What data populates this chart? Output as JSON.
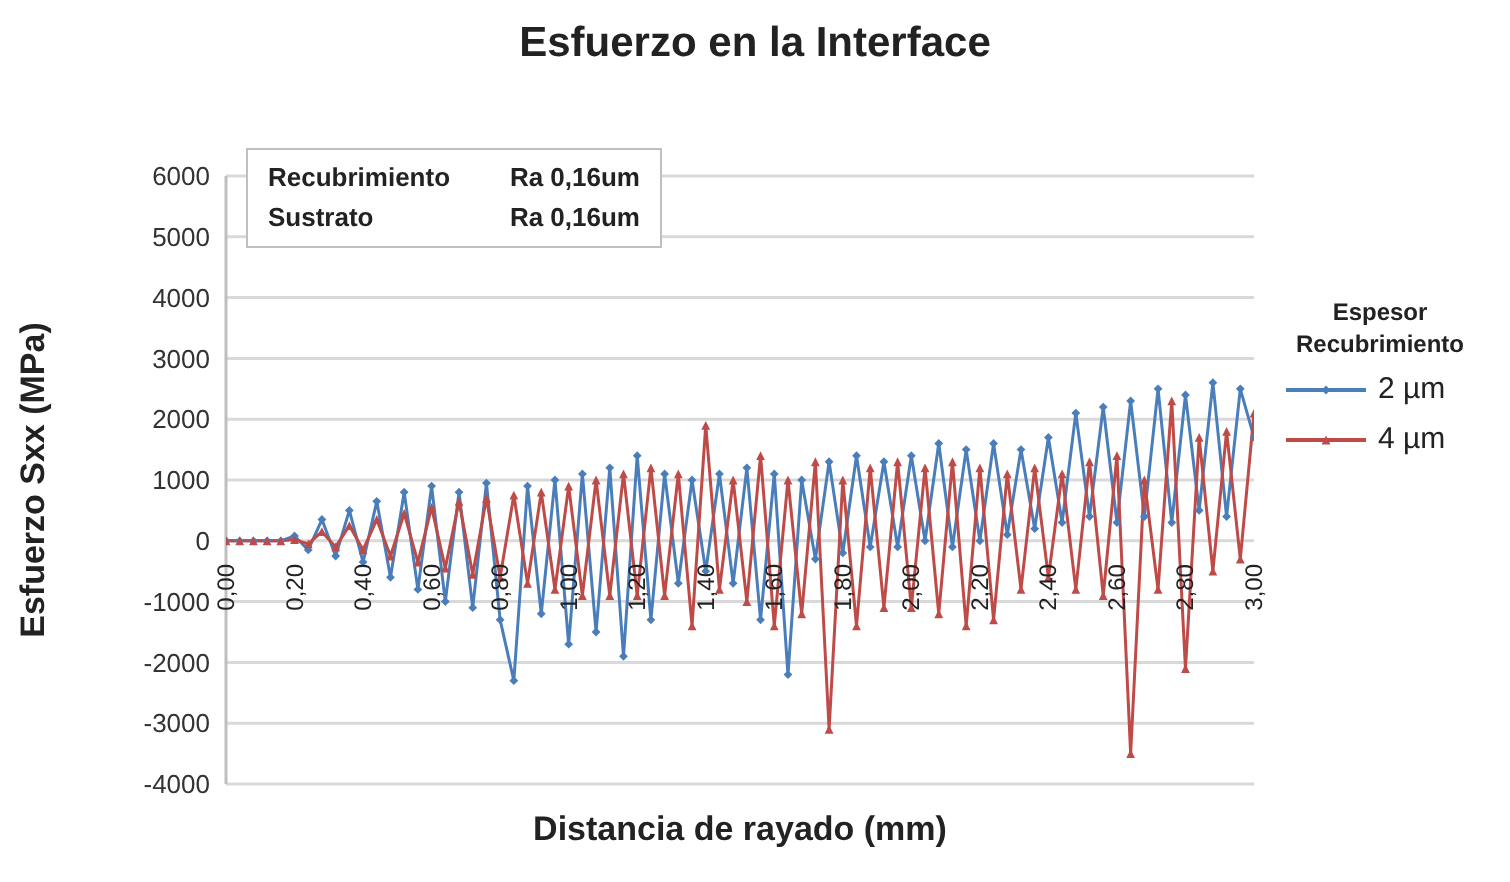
{
  "chart_data": {
    "type": "line",
    "title": "Esfuerzo en la Interface",
    "xlabel": "Distancia de rayado (mm)",
    "ylabel": "Esfuerzo Sxx (MPa)",
    "legend_title": "Espesor Recubrimiento",
    "annotations": [
      "Recubrimiento Ra 0,16um",
      "Sustrato Ra 0,16um"
    ],
    "x": [
      0,
      0.04,
      0.08,
      0.12,
      0.16,
      0.2,
      0.24,
      0.28,
      0.32,
      0.36,
      0.4,
      0.44,
      0.48,
      0.52,
      0.56,
      0.6,
      0.64,
      0.68,
      0.72,
      0.76,
      0.8,
      0.84,
      0.88,
      0.92,
      0.96,
      1,
      1.04,
      1.08,
      1.12,
      1.16,
      1.2,
      1.24,
      1.28,
      1.32,
      1.36,
      1.4,
      1.44,
      1.48,
      1.52,
      1.56,
      1.6,
      1.64,
      1.68,
      1.72,
      1.76,
      1.8,
      1.84,
      1.88,
      1.92,
      1.96,
      2,
      2.04,
      2.08,
      2.12,
      2.16,
      2.2,
      2.24,
      2.28,
      2.32,
      2.36,
      2.4,
      2.44,
      2.48,
      2.52,
      2.56,
      2.6,
      2.64,
      2.68,
      2.72,
      2.76,
      2.8,
      2.84,
      2.88,
      2.92,
      2.96,
      3
    ],
    "series": [
      {
        "name": "2 µm",
        "color": "#4a7ebb",
        "marker": "diamond",
        "values": [
          0,
          0,
          0,
          0,
          0,
          80,
          -150,
          350,
          -250,
          500,
          -350,
          650,
          -600,
          800,
          -800,
          900,
          -1000,
          800,
          -1100,
          950,
          -1300,
          -2300,
          900,
          -1200,
          1000,
          -1700,
          1100,
          -1500,
          1200,
          -1900,
          1400,
          -1300,
          1100,
          -700,
          1000,
          -500,
          1100,
          -700,
          1200,
          -1300,
          1100,
          -2200,
          1000,
          -300,
          1300,
          -200,
          1400,
          -100,
          1300,
          -100,
          1400,
          0,
          1600,
          -100,
          1500,
          0,
          1600,
          100,
          1500,
          200,
          1700,
          300,
          2100,
          400,
          2200,
          300,
          2300,
          400,
          2500,
          300,
          2400,
          500,
          2600,
          400,
          2500,
          1700
        ]
      },
      {
        "name": "4 µm",
        "color": "#be4b48",
        "marker": "triangle",
        "values": [
          0,
          0,
          0,
          0,
          0,
          20,
          -50,
          150,
          -100,
          250,
          -150,
          350,
          -250,
          450,
          -350,
          550,
          -450,
          650,
          -550,
          700,
          -600,
          750,
          -700,
          800,
          -800,
          900,
          -900,
          1000,
          -900,
          1100,
          -900,
          1200,
          -900,
          1100,
          -1400,
          1900,
          -800,
          1000,
          -1000,
          1400,
          -1400,
          1000,
          -1200,
          1300,
          -3100,
          1000,
          -1400,
          1200,
          -1100,
          1300,
          -1100,
          1200,
          -1200,
          1300,
          -1400,
          1200,
          -1300,
          1100,
          -800,
          1200,
          -600,
          1100,
          -800,
          1300,
          -900,
          1400,
          -3500,
          1000,
          -800,
          2300,
          -2100,
          1700,
          -500,
          1800,
          -300,
          2100
        ]
      }
    ],
    "xlim": [
      0,
      3
    ],
    "xticks": [
      {
        "value": 0,
        "label": "0,00"
      },
      {
        "value": 0.2,
        "label": "0,20"
      },
      {
        "value": 0.4,
        "label": "0,40"
      },
      {
        "value": 0.6,
        "label": "0,60"
      },
      {
        "value": 0.8,
        "label": "0,80"
      },
      {
        "value": 1,
        "label": "1,00"
      },
      {
        "value": 1.2,
        "label": "1,20"
      },
      {
        "value": 1.4,
        "label": "1,40"
      },
      {
        "value": 1.6,
        "label": "1,60"
      },
      {
        "value": 1.8,
        "label": "1,80"
      },
      {
        "value": 2,
        "label": "2,00"
      },
      {
        "value": 2.2,
        "label": "2,20"
      },
      {
        "value": 2.4,
        "label": "2,40"
      },
      {
        "value": 2.6,
        "label": "2,60"
      },
      {
        "value": 2.8,
        "label": "2,80"
      },
      {
        "value": 3,
        "label": "3,00"
      }
    ],
    "ylim": [
      -4000,
      6000
    ],
    "yticks": [
      -4000,
      -3000,
      -2000,
      -1000,
      0,
      1000,
      2000,
      3000,
      4000,
      5000,
      6000
    ],
    "grid": "y",
    "legend": "right"
  }
}
